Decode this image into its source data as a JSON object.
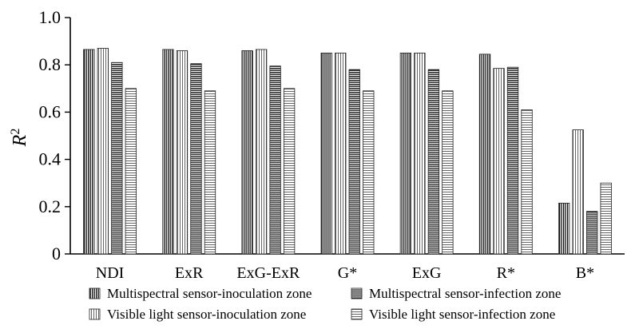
{
  "chart_data": {
    "type": "bar",
    "categories": [
      "NDI",
      "ExR",
      "ExG-ExR",
      "G*",
      "ExG",
      "R*",
      "B*"
    ],
    "series": [
      {
        "name": "Multispectral sensor-inoculation zone",
        "values": [
          0.865,
          0.865,
          0.86,
          0.85,
          0.85,
          0.845,
          0.215
        ],
        "pattern": "vstripe-dense"
      },
      {
        "name": "Visible light sensor-inoculation zone",
        "values": [
          0.87,
          0.86,
          0.865,
          0.85,
          0.85,
          0.785,
          0.525
        ],
        "pattern": "vstripe-light"
      },
      {
        "name": "Multispectral sensor-infection zone",
        "values": [
          0.81,
          0.805,
          0.795,
          0.78,
          0.78,
          0.79,
          0.18
        ],
        "pattern": "hstripe-dense"
      },
      {
        "name": "Visible light sensor-infection zone",
        "values": [
          0.7,
          0.69,
          0.7,
          0.69,
          0.69,
          0.61,
          0.3
        ],
        "pattern": "hstripe-light"
      }
    ],
    "ylabel": "R",
    "ylabel_superscript": "2",
    "ylim": [
      0,
      1.0
    ],
    "yticks": [
      "0",
      "0.2",
      "0.4",
      "0.6",
      "0.8",
      "1.0"
    ],
    "grid": false,
    "legend": "bottom"
  }
}
